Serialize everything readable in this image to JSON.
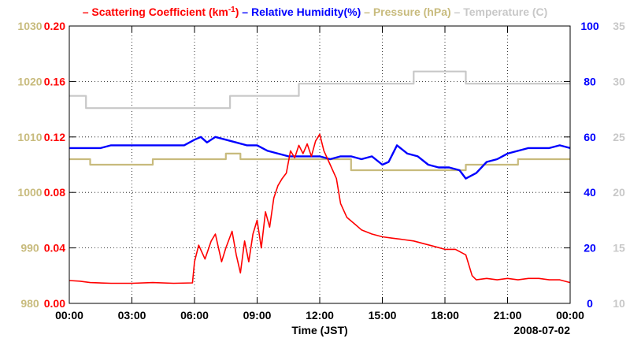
{
  "chart_data": {
    "type": "line",
    "legend": [
      {
        "key": "scattering",
        "label": "Scattering Coefficient (km",
        "sup": "-1",
        "suffix": ")",
        "color": "#ff0000"
      },
      {
        "key": "humidity",
        "label": "Relative Humidity(%)",
        "sup": "",
        "suffix": "",
        "color": "#0000ff"
      },
      {
        "key": "pressure",
        "label": "Pressure (hPa)",
        "sup": "",
        "suffix": "",
        "color": "#c8bb7d"
      },
      {
        "key": "temperature",
        "label": "Temperature (C)",
        "sup": "",
        "suffix": "",
        "color": "#c8c8c8"
      }
    ],
    "legend_marker": "–",
    "x_axis": {
      "label": "Time (JST)",
      "date_label": "2008-07-02",
      "range_hours": [
        0,
        24
      ],
      "ticks": [
        {
          "v": 0,
          "t": "00:00"
        },
        {
          "v": 3,
          "t": "03:00"
        },
        {
          "v": 6,
          "t": "06:00"
        },
        {
          "v": 9,
          "t": "09:00"
        },
        {
          "v": 12,
          "t": "12:00"
        },
        {
          "v": 15,
          "t": "15:00"
        },
        {
          "v": 18,
          "t": "18:00"
        },
        {
          "v": 21,
          "t": "21:00"
        },
        {
          "v": 24,
          "t": "00:00"
        }
      ]
    },
    "axes": {
      "pressure": {
        "range": [
          980,
          1030
        ],
        "ticks": [
          "980",
          "990",
          "1000",
          "1010",
          "1020",
          "1030"
        ],
        "color": "#c8bb7d"
      },
      "scattering": {
        "range": [
          0,
          0.2
        ],
        "ticks": [
          "0.00",
          "0.04",
          "0.08",
          "0.12",
          "0.16",
          "0.20"
        ],
        "color": "#ff0000"
      },
      "humidity": {
        "range": [
          0,
          100
        ],
        "ticks": [
          "0",
          "20",
          "40",
          "60",
          "80",
          "100"
        ],
        "color": "#0000ff"
      },
      "temperature": {
        "range": [
          10,
          35
        ],
        "ticks": [
          "10",
          "15",
          "20",
          "25",
          "30",
          "35"
        ],
        "color": "#c8c8c8"
      }
    },
    "series": [
      {
        "name": "Temperature (C)",
        "axis": "temperature",
        "color": "#c8c8c8",
        "step": true,
        "x": [
          0,
          0.8,
          0.8,
          7.7,
          7.7,
          11.0,
          11.0,
          16.5,
          16.5,
          19.0,
          19.0,
          24
        ],
        "y": [
          28.7,
          28.7,
          27.6,
          27.6,
          28.7,
          28.7,
          29.8,
          29.8,
          30.9,
          30.9,
          29.8,
          29.8
        ]
      },
      {
        "name": "Pressure (hPa)",
        "axis": "pressure",
        "color": "#c8bb7d",
        "step": true,
        "x": [
          0,
          1.0,
          1.0,
          4.0,
          4.0,
          7.5,
          7.5,
          8.2,
          8.2,
          13.5,
          13.5,
          19.0,
          19.0,
          21.5,
          21.5,
          24
        ],
        "y": [
          1006,
          1006,
          1005,
          1005,
          1006,
          1006,
          1007,
          1007,
          1006,
          1006,
          1004,
          1004,
          1005,
          1005,
          1006,
          1006
        ]
      },
      {
        "name": "Relative Humidity(%)",
        "axis": "humidity",
        "color": "#0000ff",
        "step": false,
        "x": [
          0,
          1.5,
          2.0,
          4.0,
          5.5,
          6.0,
          6.3,
          6.6,
          7.0,
          7.5,
          8.0,
          8.5,
          9.0,
          9.5,
          10.0,
          10.5,
          11.0,
          11.5,
          12.0,
          12.5,
          13.0,
          13.5,
          14.0,
          14.5,
          15.0,
          15.3,
          15.7,
          16.2,
          16.7,
          17.2,
          17.7,
          18.2,
          18.7,
          19.0,
          19.5,
          20.0,
          20.5,
          21.0,
          21.5,
          22.0,
          23.0,
          23.5,
          24
        ],
        "y": [
          56,
          56,
          57,
          57,
          57,
          59,
          60,
          58,
          60,
          59,
          58,
          57,
          57,
          55,
          54,
          53,
          53,
          53,
          53,
          52,
          53,
          53,
          52,
          53,
          50,
          51,
          57,
          54,
          53,
          50,
          49,
          49,
          48,
          45,
          47,
          51,
          52,
          54,
          55,
          56,
          56,
          57,
          56
        ]
      },
      {
        "name": "Scattering Coefficient",
        "axis": "scattering",
        "color": "#ff0000",
        "step": false,
        "x": [
          0,
          0.5,
          1.0,
          2.0,
          3.0,
          4.0,
          5.0,
          5.9,
          6.0,
          6.2,
          6.5,
          6.8,
          7.0,
          7.3,
          7.5,
          7.8,
          8.0,
          8.2,
          8.4,
          8.6,
          8.8,
          9.0,
          9.2,
          9.4,
          9.6,
          9.8,
          10.0,
          10.2,
          10.4,
          10.6,
          10.8,
          11.0,
          11.2,
          11.4,
          11.6,
          11.8,
          12.0,
          12.2,
          12.5,
          12.8,
          13.0,
          13.3,
          13.7,
          14.0,
          14.5,
          15.0,
          15.5,
          16.0,
          16.5,
          17.0,
          17.5,
          18.0,
          18.5,
          19.0,
          19.3,
          19.5,
          20.0,
          20.5,
          21.0,
          21.5,
          22.0,
          22.5,
          23.0,
          23.5,
          24.0
        ],
        "y": [
          0.0165,
          0.016,
          0.015,
          0.0145,
          0.0145,
          0.015,
          0.0145,
          0.0148,
          0.03,
          0.042,
          0.032,
          0.045,
          0.05,
          0.03,
          0.04,
          0.052,
          0.035,
          0.022,
          0.045,
          0.03,
          0.05,
          0.06,
          0.04,
          0.066,
          0.055,
          0.076,
          0.085,
          0.09,
          0.094,
          0.11,
          0.105,
          0.114,
          0.108,
          0.115,
          0.106,
          0.117,
          0.122,
          0.11,
          0.1,
          0.09,
          0.072,
          0.062,
          0.057,
          0.053,
          0.05,
          0.048,
          0.047,
          0.046,
          0.045,
          0.043,
          0.041,
          0.039,
          0.039,
          0.035,
          0.02,
          0.017,
          0.018,
          0.017,
          0.018,
          0.017,
          0.018,
          0.018,
          0.017,
          0.017,
          0.015
        ]
      }
    ]
  }
}
